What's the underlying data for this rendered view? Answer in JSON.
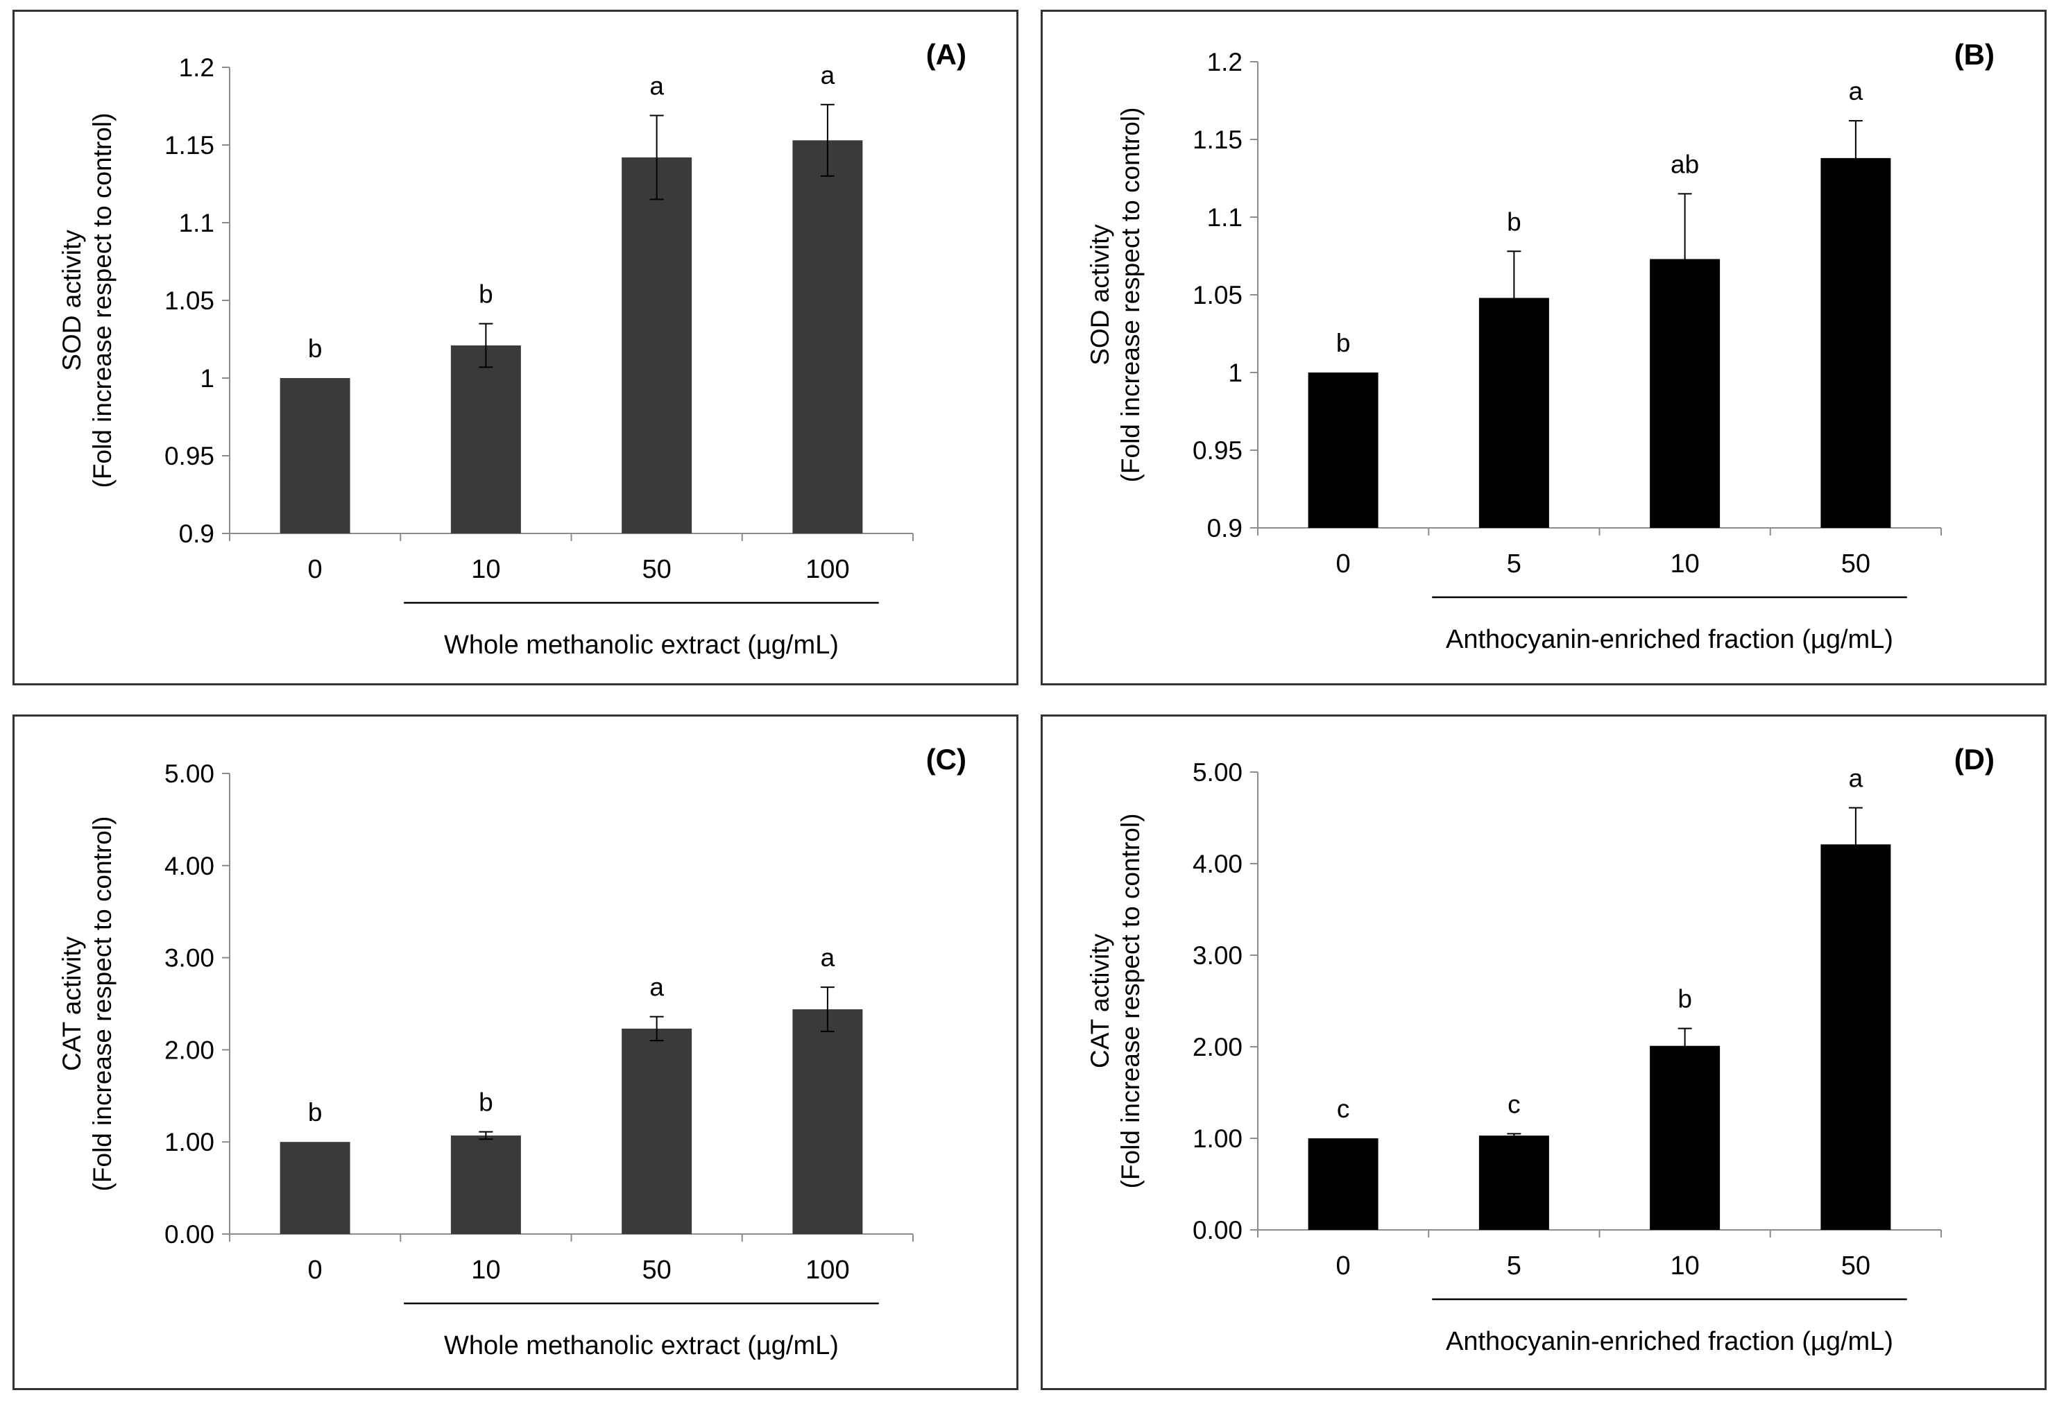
{
  "chart_data": [
    {
      "type": "bar",
      "panel_label": "(A)",
      "categories": [
        "0",
        "10",
        "50",
        "100"
      ],
      "values": [
        1.0,
        1.021,
        1.142,
        1.153
      ],
      "errors": [
        0.0,
        0.014,
        0.027,
        0.023
      ],
      "letters": [
        "b",
        "b",
        "a",
        "a"
      ],
      "ylabel_lines": [
        "SOD activity",
        "(Fold increase respect to control)"
      ],
      "xlabel": "Whole methanolic extract (µg/mL)",
      "ylim": [
        0.9,
        1.2
      ],
      "yticks": [
        "0.9",
        "0.95",
        "1",
        "1.05",
        "1.1",
        "1.15",
        "1.2"
      ],
      "bar_color": "#3a3a3a"
    },
    {
      "type": "bar",
      "panel_label": "(B)",
      "categories": [
        "0",
        "5",
        "10",
        "50"
      ],
      "values": [
        1.0,
        1.048,
        1.073,
        1.138
      ],
      "errors": [
        0.0,
        0.03,
        0.042,
        0.024
      ],
      "letters": [
        "b",
        "b",
        "ab",
        "a"
      ],
      "ylabel_lines": [
        "SOD activity",
        "(Fold increase respect to control)"
      ],
      "xlabel": "Anthocyanin-enriched fraction (µg/mL)",
      "ylim": [
        0.9,
        1.2
      ],
      "yticks": [
        "0.9",
        "0.95",
        "1",
        "1.05",
        "1.1",
        "1.15",
        "1.2"
      ],
      "bar_color": "#000000"
    },
    {
      "type": "bar",
      "panel_label": "(C)",
      "categories": [
        "0",
        "10",
        "50",
        "100"
      ],
      "values": [
        1.0,
        1.07,
        2.23,
        2.44
      ],
      "errors": [
        0.0,
        0.04,
        0.13,
        0.24
      ],
      "letters": [
        "b",
        "b",
        "a",
        "a"
      ],
      "ylabel_lines": [
        "CAT activity",
        "(Fold increase respect to control)"
      ],
      "xlabel": "Whole methanolic extract (µg/mL)",
      "ylim": [
        0,
        5
      ],
      "yticks": [
        "0.00",
        "1.00",
        "2.00",
        "3.00",
        "4.00",
        "5.00"
      ],
      "bar_color": "#3a3a3a"
    },
    {
      "type": "bar",
      "panel_label": "(D)",
      "categories": [
        "0",
        "5",
        "10",
        "50"
      ],
      "values": [
        1.0,
        1.03,
        2.01,
        4.21
      ],
      "errors": [
        0.0,
        0.02,
        0.19,
        0.4
      ],
      "letters": [
        "c",
        "c",
        "b",
        "a"
      ],
      "ylabel_lines": [
        "CAT activity",
        "(Fold increase respect to control)"
      ],
      "xlabel": "Anthocyanin-enriched fraction (µg/mL)",
      "ylim": [
        0,
        5
      ],
      "yticks": [
        "0.00",
        "1.00",
        "2.00",
        "3.00",
        "4.00",
        "5.00"
      ],
      "bar_color": "#000000"
    }
  ]
}
